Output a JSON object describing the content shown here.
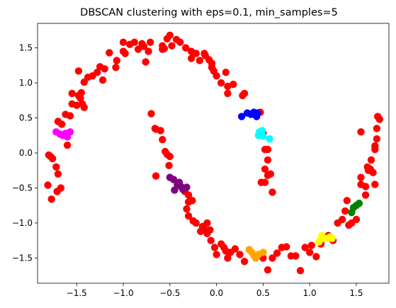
{
  "chart_data": {
    "type": "scatter",
    "title": "DBSCAN clustering with eps=0.1, min_samples=5",
    "xlabel": "",
    "ylabel": "",
    "xlim": [
      -1.92,
      1.85
    ],
    "ylim": [
      -1.86,
      1.85
    ],
    "xticks": [
      -1.5,
      -1.0,
      -0.5,
      0.0,
      0.5,
      1.0,
      1.5
    ],
    "xtick_labels": [
      "−1.5",
      "−1.0",
      "−0.5",
      "0.0",
      "0.5",
      "1.0",
      "1.5"
    ],
    "yticks": [
      -1.5,
      -1.0,
      -0.5,
      0.0,
      0.5,
      1.0,
      1.5
    ],
    "ytick_labels": [
      "−1.5",
      "−1.0",
      "−0.5",
      "0.0",
      "0.5",
      "1.0",
      "1.5"
    ],
    "grid": false,
    "series": [
      {
        "color": "#ff0000",
        "points": [
          [
            -1.8,
            -0.03
          ],
          [
            -1.81,
            -0.46
          ],
          [
            -1.78,
            -0.05
          ],
          [
            -1.76,
            -0.08
          ],
          [
            -1.77,
            -0.66
          ],
          [
            -1.72,
            -0.2
          ],
          [
            -1.7,
            -0.3
          ],
          [
            -1.67,
            -0.5
          ],
          [
            -1.71,
            -0.55
          ],
          [
            -1.7,
            0.45
          ],
          [
            -1.66,
            0.41
          ],
          [
            -1.6,
            0.11
          ],
          [
            -1.62,
            0.55
          ],
          [
            -1.57,
            0.53
          ],
          [
            -1.55,
            0.7
          ],
          [
            -1.48,
            0.82
          ],
          [
            -1.55,
            0.85
          ],
          [
            -1.5,
            0.68
          ],
          [
            -1.46,
            0.78
          ],
          [
            -1.44,
            0.7
          ],
          [
            -1.42,
            0.65
          ],
          [
            -1.45,
            0.86
          ],
          [
            -1.38,
            1.08
          ],
          [
            -1.42,
            1.01
          ],
          [
            -1.48,
            1.17
          ],
          [
            -1.33,
            1.1
          ],
          [
            -1.28,
            1.15
          ],
          [
            -1.25,
            1.23
          ],
          [
            -1.2,
            1.2
          ],
          [
            -1.22,
            1.04
          ],
          [
            -1.15,
            1.43
          ],
          [
            -1.08,
            1.22
          ],
          [
            -1.07,
            1.32
          ],
          [
            -1.0,
            1.58
          ],
          [
            -1.0,
            1.45
          ],
          [
            -0.98,
            1.42
          ],
          [
            -0.93,
            1.55
          ],
          [
            -0.88,
            1.58
          ],
          [
            -0.84,
            1.48
          ],
          [
            -0.8,
            1.56
          ],
          [
            -0.78,
            1.52
          ],
          [
            -0.76,
            1.3
          ],
          [
            -0.73,
            1.45
          ],
          [
            -0.71,
            1.58
          ],
          [
            -0.58,
            1.53
          ],
          [
            -0.58,
            1.48
          ],
          [
            -0.56,
            1.49
          ],
          [
            -0.53,
            1.63
          ],
          [
            -0.5,
            1.68
          ],
          [
            -0.48,
            1.53
          ],
          [
            -0.43,
            1.62
          ],
          [
            -0.39,
            1.58
          ],
          [
            -0.33,
            1.5
          ],
          [
            -0.27,
            1.45
          ],
          [
            -0.27,
            1.35
          ],
          [
            -0.22,
            1.42
          ],
          [
            -0.18,
            1.32
          ],
          [
            -0.13,
            1.42
          ],
          [
            -0.12,
            1.39
          ],
          [
            -0.08,
            1.33
          ],
          [
            -0.05,
            1.28
          ],
          [
            -0.05,
            1.22
          ],
          [
            -0.03,
            1.17
          ],
          [
            0.0,
            1.1
          ],
          [
            0.05,
            1.0
          ],
          [
            0.1,
            1.15
          ],
          [
            0.12,
            0.95
          ],
          [
            0.12,
            0.85
          ],
          [
            0.18,
            0.98
          ],
          [
            0.28,
            0.82
          ],
          [
            0.3,
            0.85
          ],
          [
            0.47,
            0.58
          ],
          [
            0.5,
            0.28
          ],
          [
            0.52,
            0.05
          ],
          [
            0.55,
            0.05
          ],
          [
            0.55,
            -0.1
          ],
          [
            0.52,
            -0.23
          ],
          [
            0.55,
            -0.32
          ],
          [
            0.48,
            -0.42
          ],
          [
            0.52,
            -0.42
          ],
          [
            0.58,
            -0.3
          ],
          [
            0.6,
            -0.56
          ],
          [
            -0.7,
            0.56
          ],
          [
            -0.65,
            0.34
          ],
          [
            -0.6,
            0.32
          ],
          [
            -0.66,
            0.35
          ],
          [
            -0.58,
            0.19
          ],
          [
            -0.55,
            0.02
          ],
          [
            -0.53,
            -0.02
          ],
          [
            -0.5,
            -0.05
          ],
          [
            -0.65,
            -0.33
          ],
          [
            -0.51,
            -0.18
          ],
          [
            -0.34,
            -0.55
          ],
          [
            -0.3,
            -0.6
          ],
          [
            -0.3,
            -0.7
          ],
          [
            -0.26,
            -0.68
          ],
          [
            -0.32,
            -0.8
          ],
          [
            -0.3,
            -0.9
          ],
          [
            -0.25,
            -0.97
          ],
          [
            -0.22,
            -1.0
          ],
          [
            -0.17,
            -1.12
          ],
          [
            -0.15,
            -1.05
          ],
          [
            -0.12,
            -1.1
          ],
          [
            -0.1,
            -1.0
          ],
          [
            -0.1,
            -1.15
          ],
          [
            -0.07,
            -1.1
          ],
          [
            -0.06,
            -1.25
          ],
          [
            -0.02,
            -1.35
          ],
          [
            0.05,
            -1.3
          ],
          [
            0.08,
            -1.35
          ],
          [
            0.0,
            -1.45
          ],
          [
            0.1,
            -1.4
          ],
          [
            0.12,
            -1.5
          ],
          [
            0.15,
            -1.42
          ],
          [
            0.2,
            -1.37
          ],
          [
            0.25,
            -1.45
          ],
          [
            0.3,
            -1.55
          ],
          [
            0.5,
            -1.5
          ],
          [
            0.55,
            -1.67
          ],
          [
            0.6,
            -1.5
          ],
          [
            0.65,
            -1.43
          ],
          [
            0.7,
            -1.35
          ],
          [
            0.75,
            -1.34
          ],
          [
            0.8,
            -1.47
          ],
          [
            0.85,
            -1.47
          ],
          [
            0.9,
            -1.68
          ],
          [
            0.95,
            -1.35
          ],
          [
            1.0,
            -1.42
          ],
          [
            1.02,
            -1.32
          ],
          [
            1.07,
            -1.48
          ],
          [
            1.12,
            -1.3
          ],
          [
            1.2,
            -1.18
          ],
          [
            1.25,
            -1.25
          ],
          [
            1.3,
            -1.0
          ],
          [
            1.35,
            -0.95
          ],
          [
            1.38,
            -0.83
          ],
          [
            1.42,
            -1.03
          ],
          [
            1.45,
            -1.0
          ],
          [
            1.5,
            -0.95
          ],
          [
            1.4,
            -0.68
          ],
          [
            1.55,
            -0.35
          ],
          [
            1.6,
            -0.6
          ],
          [
            1.55,
            -0.45
          ],
          [
            1.6,
            -0.48
          ],
          [
            1.62,
            -0.2
          ],
          [
            1.63,
            -0.25
          ],
          [
            1.65,
            -0.23
          ],
          [
            1.66,
            -0.1
          ],
          [
            1.68,
            -0.28
          ],
          [
            1.7,
            -0.45
          ],
          [
            1.7,
            0.05
          ],
          [
            1.7,
            0.1
          ],
          [
            1.72,
            0.2
          ],
          [
            1.72,
            0.35
          ],
          [
            1.75,
            0.48
          ],
          [
            1.73,
            0.52
          ],
          [
            1.55,
            0.3
          ]
        ]
      },
      {
        "color": "#ff00ff",
        "points": [
          [
            -1.72,
            0.3
          ],
          [
            -1.68,
            0.27
          ],
          [
            -1.65,
            0.25
          ],
          [
            -1.62,
            0.28
          ],
          [
            -1.6,
            0.23
          ],
          [
            -1.57,
            0.3
          ]
        ]
      },
      {
        "color": "#0000ff",
        "points": [
          [
            0.27,
            0.52
          ],
          [
            0.33,
            0.57
          ],
          [
            0.37,
            0.55
          ],
          [
            0.4,
            0.58
          ],
          [
            0.43,
            0.52
          ],
          [
            0.44,
            0.57
          ]
        ]
      },
      {
        "color": "#00ffff",
        "points": [
          [
            0.45,
            0.25
          ],
          [
            0.46,
            0.3
          ],
          [
            0.48,
            0.28
          ],
          [
            0.49,
            0.32
          ],
          [
            0.5,
            0.24
          ],
          [
            0.57,
            0.2
          ]
        ]
      },
      {
        "color": "#800080",
        "points": [
          [
            -0.5,
            -0.35
          ],
          [
            -0.46,
            -0.38
          ],
          [
            -0.45,
            -0.53
          ],
          [
            -0.42,
            -0.45
          ],
          [
            -0.4,
            -0.42
          ],
          [
            -0.38,
            -0.48
          ],
          [
            -0.36,
            -0.52
          ],
          [
            -0.32,
            -0.49
          ]
        ]
      },
      {
        "color": "#ffa500",
        "points": [
          [
            0.35,
            -1.38
          ],
          [
            0.38,
            -1.42
          ],
          [
            0.4,
            -1.46
          ],
          [
            0.42,
            -1.5
          ],
          [
            0.45,
            -1.45
          ],
          [
            0.5,
            -1.42
          ]
        ]
      },
      {
        "color": "#ffff00",
        "points": [
          [
            1.1,
            -1.27
          ],
          [
            1.12,
            -1.23
          ],
          [
            1.13,
            -1.18
          ],
          [
            1.18,
            -1.22
          ],
          [
            1.22,
            -1.2
          ],
          [
            1.24,
            -1.22
          ]
        ]
      },
      {
        "color": "#008000",
        "points": [
          [
            1.45,
            -0.85
          ],
          [
            1.47,
            -0.78
          ],
          [
            1.5,
            -0.75
          ],
          [
            1.53,
            -0.72
          ]
        ]
      }
    ]
  }
}
